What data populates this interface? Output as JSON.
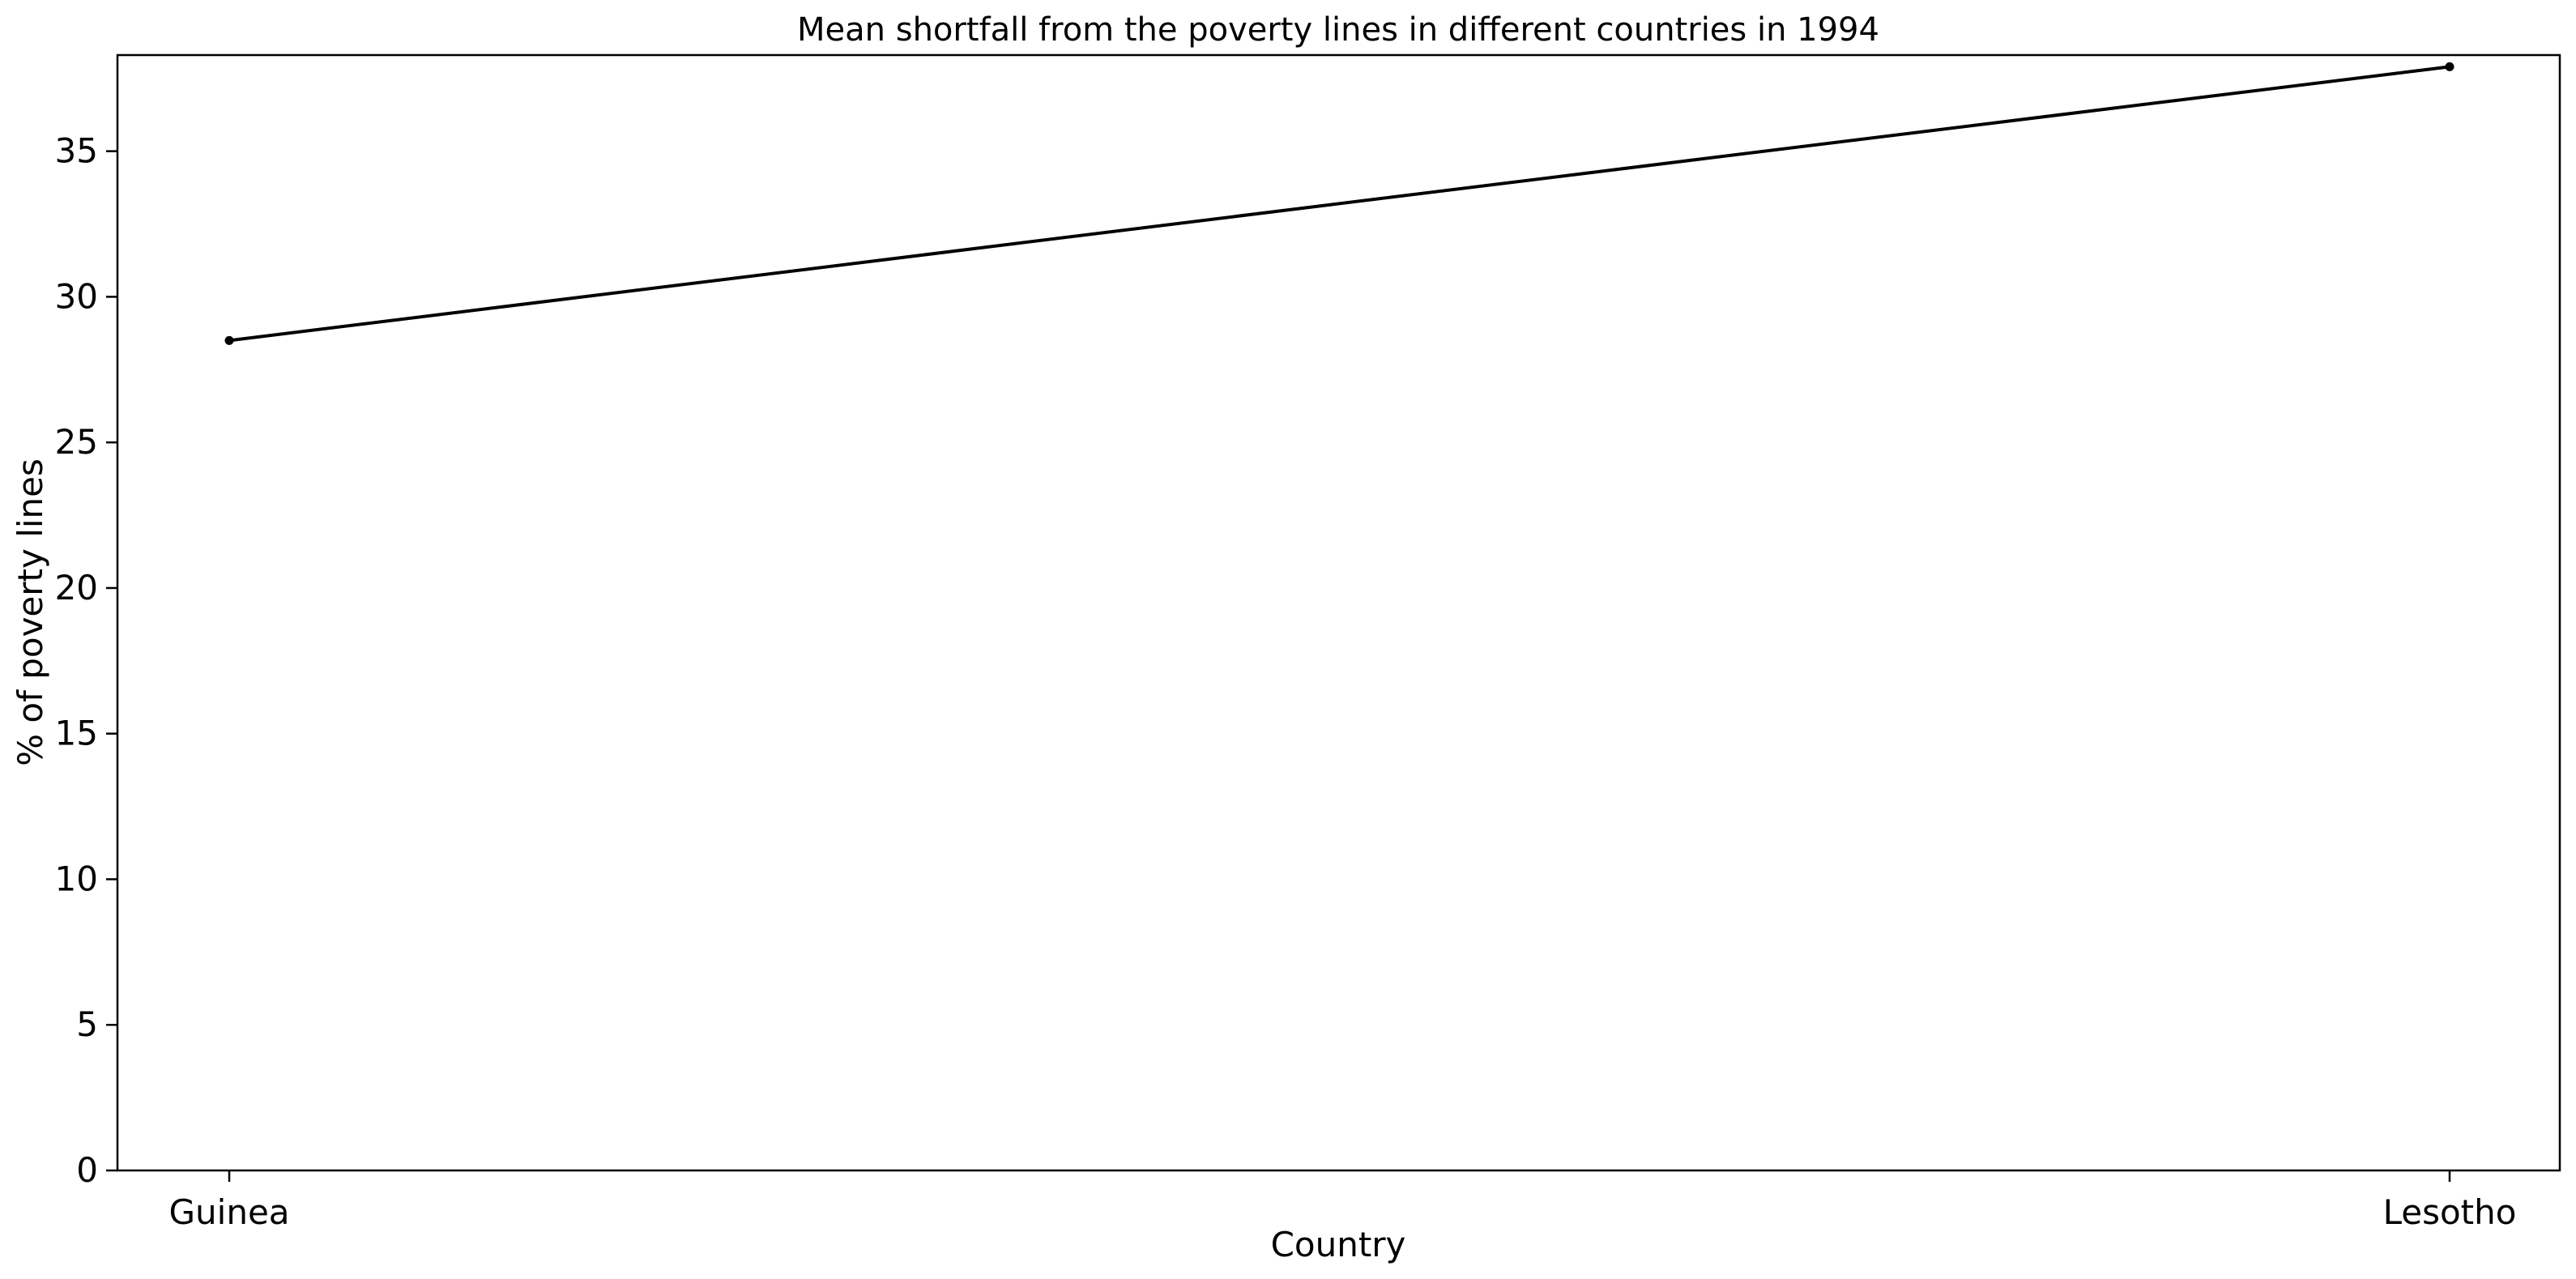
{
  "chart_data": {
    "type": "line",
    "title": "Mean shortfall from the poverty lines in different countries in 1994",
    "xlabel": "Country",
    "ylabel": "% of poverty lines",
    "categories": [
      "Guinea",
      "Lesotho"
    ],
    "series": [
      {
        "values": [
          28.5,
          37.9
        ],
        "color": "#000000",
        "marker": "circle"
      }
    ],
    "ylim": [
      0,
      38.3
    ],
    "yticks": [
      0,
      5,
      10,
      15,
      20,
      25,
      30,
      35
    ],
    "grid": false,
    "legend": "none"
  }
}
